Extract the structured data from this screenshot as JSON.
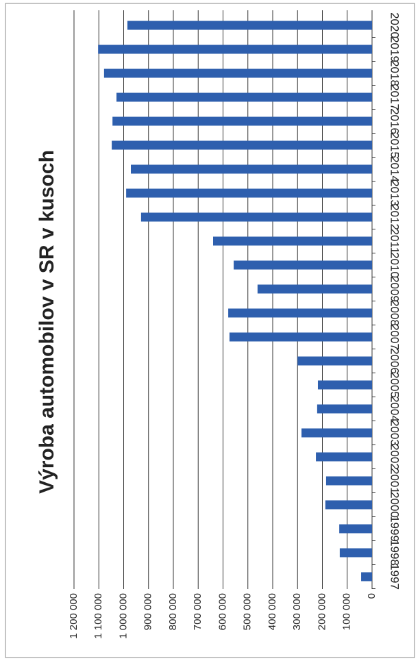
{
  "chart_data": {
    "type": "bar",
    "title": "Výroba automobilov v SR v kusoch",
    "categories": [
      "1997",
      "1998",
      "1999",
      "2000",
      "2001",
      "2002",
      "2003",
      "2004",
      "2005",
      "2006",
      "2007",
      "2008",
      "2009",
      "2010",
      "2011",
      "2012",
      "2013",
      "2014",
      "2015",
      "2016",
      "2017",
      "2018",
      "2019",
      "2020"
    ],
    "values": [
      44000,
      130000,
      132000,
      188000,
      185000,
      226000,
      284000,
      221000,
      218000,
      300000,
      574000,
      579000,
      461000,
      557000,
      640000,
      930000,
      990000,
      971000,
      1048000,
      1045000,
      1029000,
      1079000,
      1103000,
      985000
    ],
    "color": "#2e5fae",
    "ylim": [
      0,
      1200000
    ],
    "yticks": [
      0,
      {
        "value": 100000,
        "label": "100 000"
      },
      {
        "value": 200000,
        "label": "200 000"
      },
      {
        "value": 300000,
        "label": "300 000"
      },
      {
        "value": 400000,
        "label": "400 000"
      },
      {
        "value": 500000,
        "label": "500 000"
      },
      {
        "value": 600000,
        "label": "600 000"
      },
      {
        "value": 700000,
        "label": "700 000"
      },
      {
        "value": 800000,
        "label": "800 000"
      },
      {
        "value": 900000,
        "label": "900 000"
      },
      {
        "value": 1000000,
        "label": "1 000 000"
      },
      {
        "value": 1100000,
        "label": "1 100 000"
      },
      {
        "value": 1200000,
        "label": "1 200 000"
      }
    ],
    "grid": true
  }
}
